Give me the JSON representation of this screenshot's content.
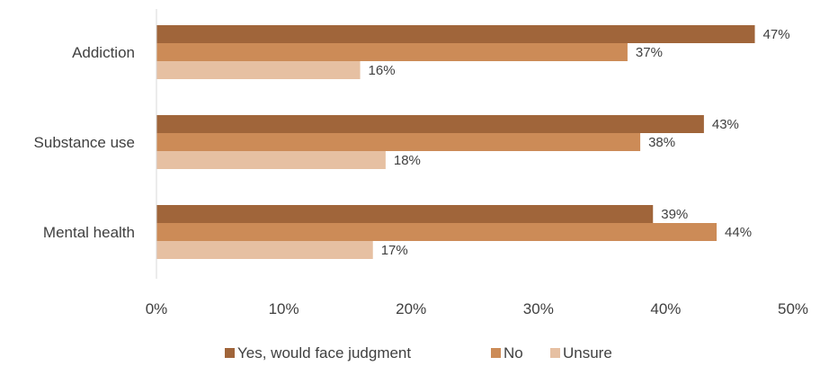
{
  "chart_data": {
    "type": "bar",
    "orientation": "horizontal",
    "categories": [
      "Addiction",
      "Substance use",
      "Mental health"
    ],
    "series": [
      {
        "name": "Yes, would face judgment",
        "values": [
          47,
          43,
          39
        ],
        "color": "#A0653A"
      },
      {
        "name": "No",
        "values": [
          37,
          38,
          44
        ],
        "color": "#CC8B57"
      },
      {
        "name": "Unsure",
        "values": [
          16,
          18,
          17
        ],
        "color": "#E6C0A2"
      }
    ],
    "xlim": [
      0,
      50
    ],
    "x_ticks": [
      0,
      10,
      20,
      30,
      40,
      50
    ],
    "value_suffix": "%",
    "title": "",
    "xlabel": "",
    "ylabel": "",
    "grid": false,
    "legend_position": "bottom"
  }
}
